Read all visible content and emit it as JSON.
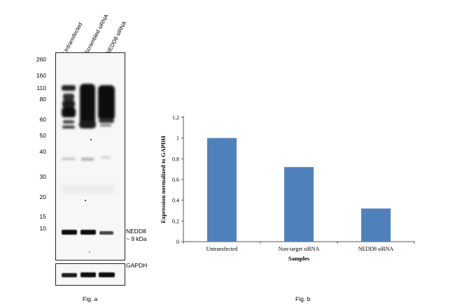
{
  "figure_a": {
    "lanes": [
      "Untransfected",
      "Scrambled siRNA",
      "NEDD8 siRNA"
    ],
    "mw_markers": [
      "260",
      "160",
      "110",
      "80",
      "60",
      "50",
      "40",
      "30",
      "20",
      "15",
      "10"
    ],
    "band_label_line1": "NEDD8",
    "band_label_line2": "~ 9 kDa",
    "loading_control": "GAPDH",
    "caption": "Fig. a"
  },
  "figure_b": {
    "caption": "Fig. b"
  },
  "chart_data": {
    "type": "bar",
    "title": "",
    "categories": [
      "Untransfected",
      "Non-target siRNA",
      "NEDD8 siRNA"
    ],
    "values": [
      1.0,
      0.72,
      0.32
    ],
    "xlabel": "Samples",
    "ylabel": "Expression normalized to GAPDH",
    "ylim": [
      0,
      1.2
    ],
    "yticks": [
      "0",
      "0.2",
      "0.4",
      "0.6",
      "0.8",
      "1",
      "1.2"
    ],
    "bar_color": "#4f81bd",
    "grid": false
  }
}
